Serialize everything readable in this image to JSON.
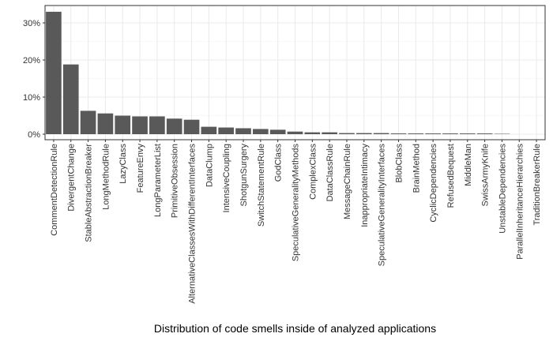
{
  "chart_data": {
    "type": "bar",
    "title": "",
    "xlabel": "Distribution of code smells inside of analyzed applications",
    "ylabel": "",
    "ylim": [
      0,
      0.345
    ],
    "yticks": [
      0,
      0.1,
      0.2,
      0.3
    ],
    "ytick_labels": [
      "0%",
      "10%",
      "20%",
      "30%"
    ],
    "grid": true,
    "bar_color": "#595959",
    "categories": [
      "CommentDetectionRule",
      "DivergentChange",
      "StableAbstractionBreaker",
      "LongMethodRule",
      "LazyClass",
      "FeatureEnvy",
      "LongParameterList",
      "PrimitiveObsession",
      "AlternativeClassesWithDifferentInterfaces",
      "DataClump",
      "IntensiveCoupling",
      "ShotgunSurgery",
      "SwitchStatementRule",
      "GodClass",
      "SpeculativeGeneralityMethods",
      "ComplexClass",
      "DataClassRule",
      "MessageChainRule",
      "InappropriateIntimacy",
      "SpeculativeGeneralityInterfaces",
      "BlobClass",
      "BrainMethod",
      "CyclicDependencies",
      "RefusedBequest",
      "MiddleMan",
      "SwissArmyKnife",
      "UnstableDependencies",
      "ParallelInheritanceHierarchies",
      "TraditionBreakerRule"
    ],
    "values": [
      0.33,
      0.188,
      0.063,
      0.056,
      0.05,
      0.048,
      0.048,
      0.042,
      0.039,
      0.02,
      0.018,
      0.016,
      0.014,
      0.012,
      0.007,
      0.005,
      0.005,
      0.003,
      0.003,
      0.003,
      0.002,
      0.002,
      0.002,
      0.002,
      0.002,
      0.002,
      0.001,
      0.0,
      0.0
    ]
  }
}
